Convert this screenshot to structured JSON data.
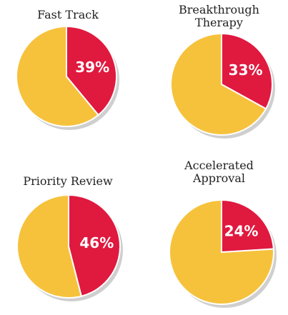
{
  "colors": {
    "primary": "#e0193f",
    "secondary": "#f6c23c",
    "shadow": "#cfcfcf"
  },
  "chart_data": [
    {
      "type": "pie",
      "title_lines": [
        "Fast Track"
      ],
      "value": 39,
      "label": "39%"
    },
    {
      "type": "pie",
      "title_lines": [
        "Breakthrough",
        "Therapy"
      ],
      "value": 33,
      "label": "33%"
    },
    {
      "type": "pie",
      "title_lines": [
        "Priority Review"
      ],
      "value": 46,
      "label": "46%"
    },
    {
      "type": "pie",
      "title_lines": [
        "Accelerated",
        "Approval"
      ],
      "value": 24,
      "label": "24%"
    }
  ]
}
